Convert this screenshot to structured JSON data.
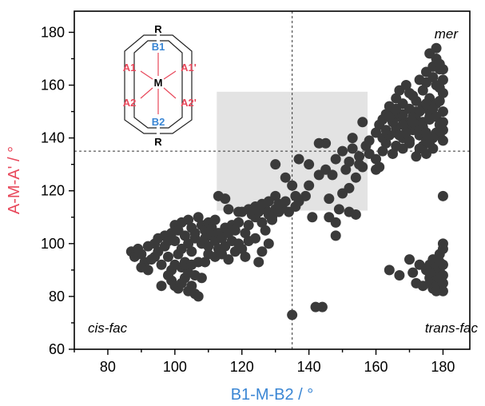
{
  "chart_data": {
    "type": "scatter",
    "xlabel": "B1-M-B2 / °",
    "ylabel": "A-M-A' / °",
    "xlim": [
      70,
      188
    ],
    "ylim": [
      60,
      188
    ],
    "xticks": [
      80,
      100,
      120,
      140,
      160,
      180
    ],
    "yticks": [
      60,
      80,
      100,
      120,
      140,
      160,
      180
    ],
    "grid": false,
    "colors": {
      "points": "#3a3a3a",
      "xlabel": "#3a86d4",
      "ylabel": "#e8485b",
      "shaded_region": "#e3e3e3",
      "reference_lines": "#333333",
      "inset_b": "#3a86d4",
      "inset_a": "#e8485b"
    },
    "reference_lines": {
      "x": 135,
      "y": 135
    },
    "shaded_region": {
      "x": [
        112.5,
        157.5
      ],
      "y": [
        112.5,
        157.5
      ]
    },
    "region_labels": {
      "top_right": "mer",
      "bottom_left": "cis-fac",
      "bottom_right": "trans-fac"
    },
    "inset_labels": {
      "r": "R",
      "b1": "B1",
      "b2": "B2",
      "m": "M",
      "a1": "A1",
      "a1p": "A1'",
      "a2": "A2",
      "a2p": "A2'"
    },
    "points": [
      [
        87,
        97
      ],
      [
        88,
        95
      ],
      [
        89,
        98
      ],
      [
        90,
        96
      ],
      [
        91,
        93
      ],
      [
        92,
        99
      ],
      [
        93,
        94
      ],
      [
        94,
        100
      ],
      [
        95,
        97
      ],
      [
        96,
        92
      ],
      [
        97,
        99
      ],
      [
        98,
        95
      ],
      [
        99,
        90
      ],
      [
        100,
        101
      ],
      [
        101,
        96
      ],
      [
        102,
        98
      ],
      [
        103,
        93
      ],
      [
        104,
        100
      ],
      [
        105,
        97
      ],
      [
        106,
        102
      ],
      [
        90,
        91
      ],
      [
        92,
        90
      ],
      [
        94,
        95
      ],
      [
        95,
        102
      ],
      [
        97,
        103
      ],
      [
        98,
        101
      ],
      [
        99,
        104
      ],
      [
        100,
        107
      ],
      [
        101,
        105
      ],
      [
        102,
        108
      ],
      [
        103,
        103
      ],
      [
        104,
        109
      ],
      [
        105,
        106
      ],
      [
        106,
        104
      ],
      [
        107,
        110
      ],
      [
        108,
        107
      ],
      [
        109,
        105
      ],
      [
        110,
        108
      ],
      [
        111,
        106
      ],
      [
        112,
        109
      ],
      [
        98,
        88
      ],
      [
        99,
        86
      ],
      [
        100,
        84
      ],
      [
        101,
        83
      ],
      [
        102,
        85
      ],
      [
        103,
        87
      ],
      [
        104,
        82
      ],
      [
        105,
        84
      ],
      [
        106,
        81
      ],
      [
        107,
        80
      ],
      [
        102,
        91
      ],
      [
        104,
        89
      ],
      [
        106,
        88
      ],
      [
        108,
        87
      ],
      [
        100,
        92
      ],
      [
        103,
        92
      ],
      [
        105,
        92
      ],
      [
        107,
        93
      ],
      [
        109,
        93
      ],
      [
        96,
        84
      ],
      [
        108,
        100
      ],
      [
        109,
        102
      ],
      [
        110,
        99
      ],
      [
        111,
        103
      ],
      [
        112,
        101
      ],
      [
        113,
        104
      ],
      [
        114,
        102
      ],
      [
        115,
        106
      ],
      [
        116,
        104
      ],
      [
        117,
        107
      ],
      [
        118,
        105
      ],
      [
        119,
        108
      ],
      [
        113,
        98
      ],
      [
        115,
        99
      ],
      [
        117,
        101
      ],
      [
        110,
        96
      ],
      [
        112,
        95
      ],
      [
        114,
        96
      ],
      [
        116,
        94
      ],
      [
        118,
        97
      ],
      [
        121,
        95
      ],
      [
        120,
        98
      ],
      [
        119,
        100
      ],
      [
        122,
        101
      ],
      [
        124,
        102
      ],
      [
        121,
        104
      ],
      [
        122,
        107
      ],
      [
        124,
        110
      ],
      [
        126,
        108
      ],
      [
        128,
        111
      ],
      [
        130,
        113
      ],
      [
        132,
        114
      ],
      [
        134,
        112
      ],
      [
        133,
        116
      ],
      [
        131,
        115
      ],
      [
        136,
        114
      ],
      [
        136,
        118
      ],
      [
        139,
        118
      ],
      [
        137,
        116
      ],
      [
        135,
        122
      ],
      [
        126,
        97
      ],
      [
        125,
        93
      ],
      [
        128,
        100
      ],
      [
        127,
        105
      ],
      [
        129,
        109
      ],
      [
        131,
        112
      ],
      [
        122,
        113
      ],
      [
        119,
        112
      ],
      [
        113,
        118
      ],
      [
        115,
        117
      ],
      [
        116,
        113
      ],
      [
        120,
        112
      ],
      [
        123,
        111
      ],
      [
        125,
        112
      ],
      [
        127,
        113
      ],
      [
        129,
        110
      ],
      [
        124,
        114
      ],
      [
        126,
        115
      ],
      [
        128,
        116
      ],
      [
        130,
        118
      ],
      [
        130,
        130
      ],
      [
        133,
        125
      ],
      [
        137,
        132
      ],
      [
        140,
        130
      ],
      [
        143,
        126
      ],
      [
        145,
        138
      ],
      [
        148,
        132
      ],
      [
        150,
        135
      ],
      [
        152,
        131
      ],
      [
        153,
        140
      ],
      [
        155,
        133
      ],
      [
        156,
        146
      ],
      [
        157,
        137
      ],
      [
        154,
        125
      ],
      [
        152,
        121
      ],
      [
        150,
        119
      ],
      [
        149,
        113
      ],
      [
        148,
        108
      ],
      [
        146,
        110
      ],
      [
        141,
        110
      ],
      [
        145,
        128
      ],
      [
        147,
        126
      ],
      [
        151,
        128
      ],
      [
        153,
        136
      ],
      [
        155,
        130
      ],
      [
        158,
        139
      ],
      [
        160,
        132
      ],
      [
        158,
        134
      ],
      [
        156,
        129
      ],
      [
        160,
        128
      ],
      [
        162,
        135
      ],
      [
        163,
        138
      ],
      [
        165,
        134
      ],
      [
        166,
        137
      ],
      [
        168,
        136
      ],
      [
        170,
        138
      ],
      [
        172,
        133
      ],
      [
        174,
        137
      ],
      [
        175,
        134
      ],
      [
        177,
        136
      ],
      [
        160,
        142
      ],
      [
        162,
        140
      ],
      [
        164,
        141
      ],
      [
        166,
        142
      ],
      [
        168,
        140
      ],
      [
        170,
        139
      ],
      [
        171,
        143
      ],
      [
        173,
        141
      ],
      [
        175,
        139
      ],
      [
        178,
        142
      ],
      [
        169,
        146
      ],
      [
        172,
        147
      ],
      [
        174,
        144
      ],
      [
        176,
        148
      ],
      [
        179,
        145
      ],
      [
        167,
        148
      ],
      [
        165,
        150
      ],
      [
        163,
        149
      ],
      [
        161,
        145
      ],
      [
        166,
        144
      ],
      [
        164,
        152
      ],
      [
        166,
        155
      ],
      [
        168,
        153
      ],
      [
        170,
        157
      ],
      [
        172,
        154
      ],
      [
        174,
        158
      ],
      [
        176,
        155
      ],
      [
        178,
        160
      ],
      [
        180,
        157
      ],
      [
        167,
        158
      ],
      [
        169,
        160
      ],
      [
        171,
        156
      ],
      [
        173,
        162
      ],
      [
        175,
        161
      ],
      [
        177,
        163
      ],
      [
        179,
        159
      ],
      [
        180,
        162
      ],
      [
        165,
        146
      ],
      [
        163,
        143
      ],
      [
        162,
        147
      ],
      [
        170,
        151
      ],
      [
        172,
        150
      ],
      [
        174,
        152
      ],
      [
        176,
        150
      ],
      [
        178,
        153
      ],
      [
        180,
        150
      ],
      [
        171,
        148
      ],
      [
        173,
        150
      ],
      [
        175,
        153
      ],
      [
        177,
        151
      ],
      [
        179,
        154
      ],
      [
        168,
        149
      ],
      [
        166,
        151
      ],
      [
        164,
        148
      ],
      [
        175,
        165
      ],
      [
        177,
        167
      ],
      [
        178,
        170
      ],
      [
        176,
        172
      ],
      [
        178,
        174
      ],
      [
        179,
        166
      ],
      [
        170,
        144
      ],
      [
        168,
        145
      ],
      [
        171,
        146
      ],
      [
        169,
        142
      ],
      [
        172,
        145
      ],
      [
        167,
        141
      ],
      [
        173,
        143
      ],
      [
        174,
        146
      ],
      [
        176,
        147
      ],
      [
        178,
        148
      ],
      [
        180,
        146
      ],
      [
        180,
        143
      ],
      [
        179,
        141
      ],
      [
        177,
        140
      ],
      [
        175,
        142
      ],
      [
        176,
        138
      ],
      [
        173,
        136
      ],
      [
        180,
        139
      ],
      [
        180,
        166
      ],
      [
        179,
        168
      ],
      [
        176,
        87
      ],
      [
        177,
        89
      ],
      [
        178,
        86
      ],
      [
        179,
        90
      ],
      [
        180,
        88
      ],
      [
        176,
        92
      ],
      [
        177,
        94
      ],
      [
        178,
        91
      ],
      [
        179,
        93
      ],
      [
        180,
        92
      ],
      [
        176,
        85
      ],
      [
        177,
        83
      ],
      [
        178,
        84
      ],
      [
        180,
        85
      ],
      [
        179,
        96
      ],
      [
        180,
        98
      ],
      [
        180,
        100
      ],
      [
        180,
        118
      ],
      [
        178,
        82
      ],
      [
        180,
        82
      ],
      [
        164,
        90
      ],
      [
        167,
        88
      ],
      [
        170,
        94
      ],
      [
        172,
        85
      ],
      [
        174,
        84
      ],
      [
        171,
        89
      ],
      [
        173,
        92
      ],
      [
        175,
        90
      ],
      [
        179,
        87
      ],
      [
        176,
        89
      ],
      [
        135,
        73
      ],
      [
        142,
        76
      ],
      [
        144,
        76
      ],
      [
        148,
        103
      ],
      [
        152,
        112
      ],
      [
        154,
        111
      ],
      [
        143,
        138
      ],
      [
        146,
        117
      ],
      [
        140,
        122
      ],
      [
        161,
        129
      ]
    ]
  }
}
